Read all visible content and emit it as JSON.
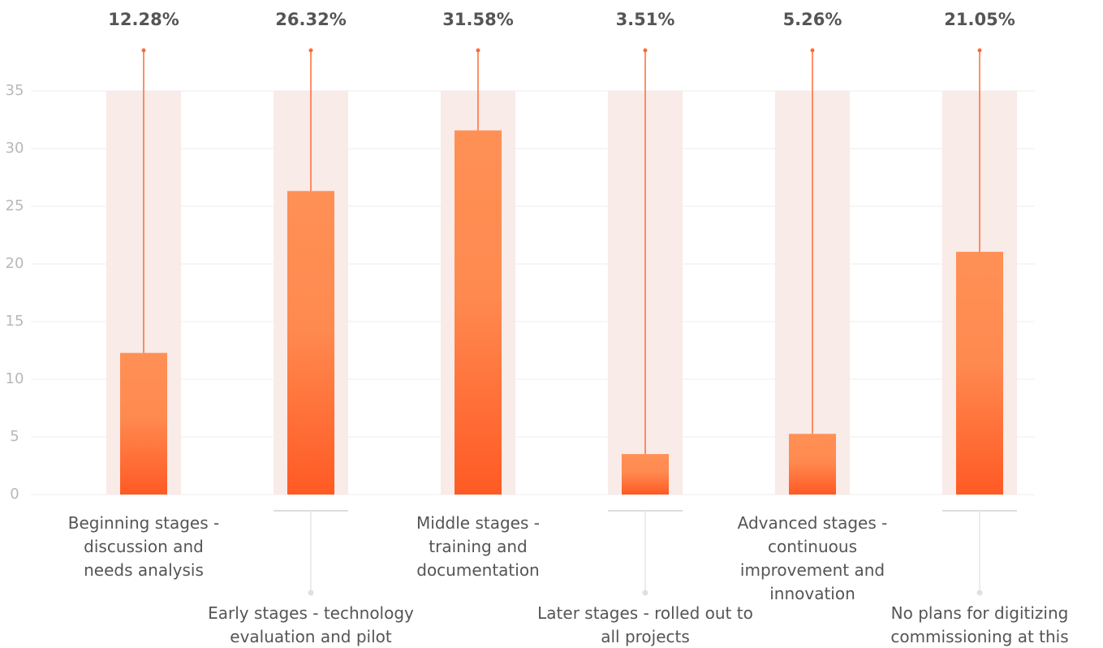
{
  "chart_data": {
    "type": "bar",
    "categories": [
      "Beginning stages - discussion and needs analysis",
      "Early stages - technology evaluation and pilot",
      "Middle stages - training and documentation",
      "Later stages - rolled out to all projects",
      "Advanced stages - continuous improvement and innovation",
      "No plans for digitizing commissioning at this time"
    ],
    "values": [
      12.28,
      26.32,
      31.58,
      3.51,
      5.26,
      21.05
    ],
    "value_labels": [
      "12.28%",
      "26.32%",
      "31.58%",
      "3.51%",
      "5.26%",
      "21.05%"
    ],
    "color": "#ff6a33",
    "ylim": [
      0,
      35
    ],
    "yticks": [
      0,
      5,
      10,
      15,
      20,
      25,
      30,
      35
    ],
    "grid": true
  }
}
